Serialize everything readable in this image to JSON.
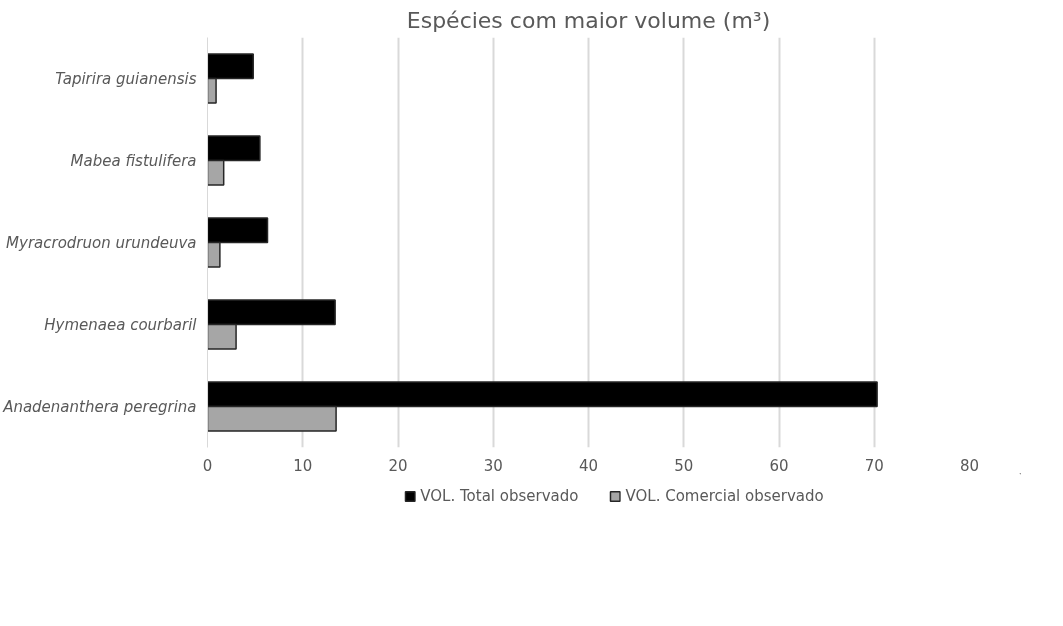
{
  "chart_data": {
    "type": "bar",
    "orientation": "horizontal",
    "title": "Espécies com maior volume (m³)",
    "categories": [
      "Tapirira guianensis",
      "Mabea fistulifera",
      "Myracrodruon urundeuva",
      "Hymenaea courbaril",
      "Anadenanthera peregrina"
    ],
    "series": [
      {
        "name": "VOL. Total observado",
        "color": "#000000",
        "values": [
          4.8,
          5.5,
          6.3,
          13.4,
          70.3
        ]
      },
      {
        "name": "VOL. Comercial observado",
        "color": "#a6a6a6",
        "values": [
          0.9,
          1.7,
          1.3,
          3.0,
          13.5
        ]
      }
    ],
    "xlim": [
      0,
      80
    ],
    "xticks": [
      0,
      10,
      20,
      30,
      40,
      50,
      60,
      70,
      80
    ],
    "grid": "x",
    "legend": "bottom"
  }
}
